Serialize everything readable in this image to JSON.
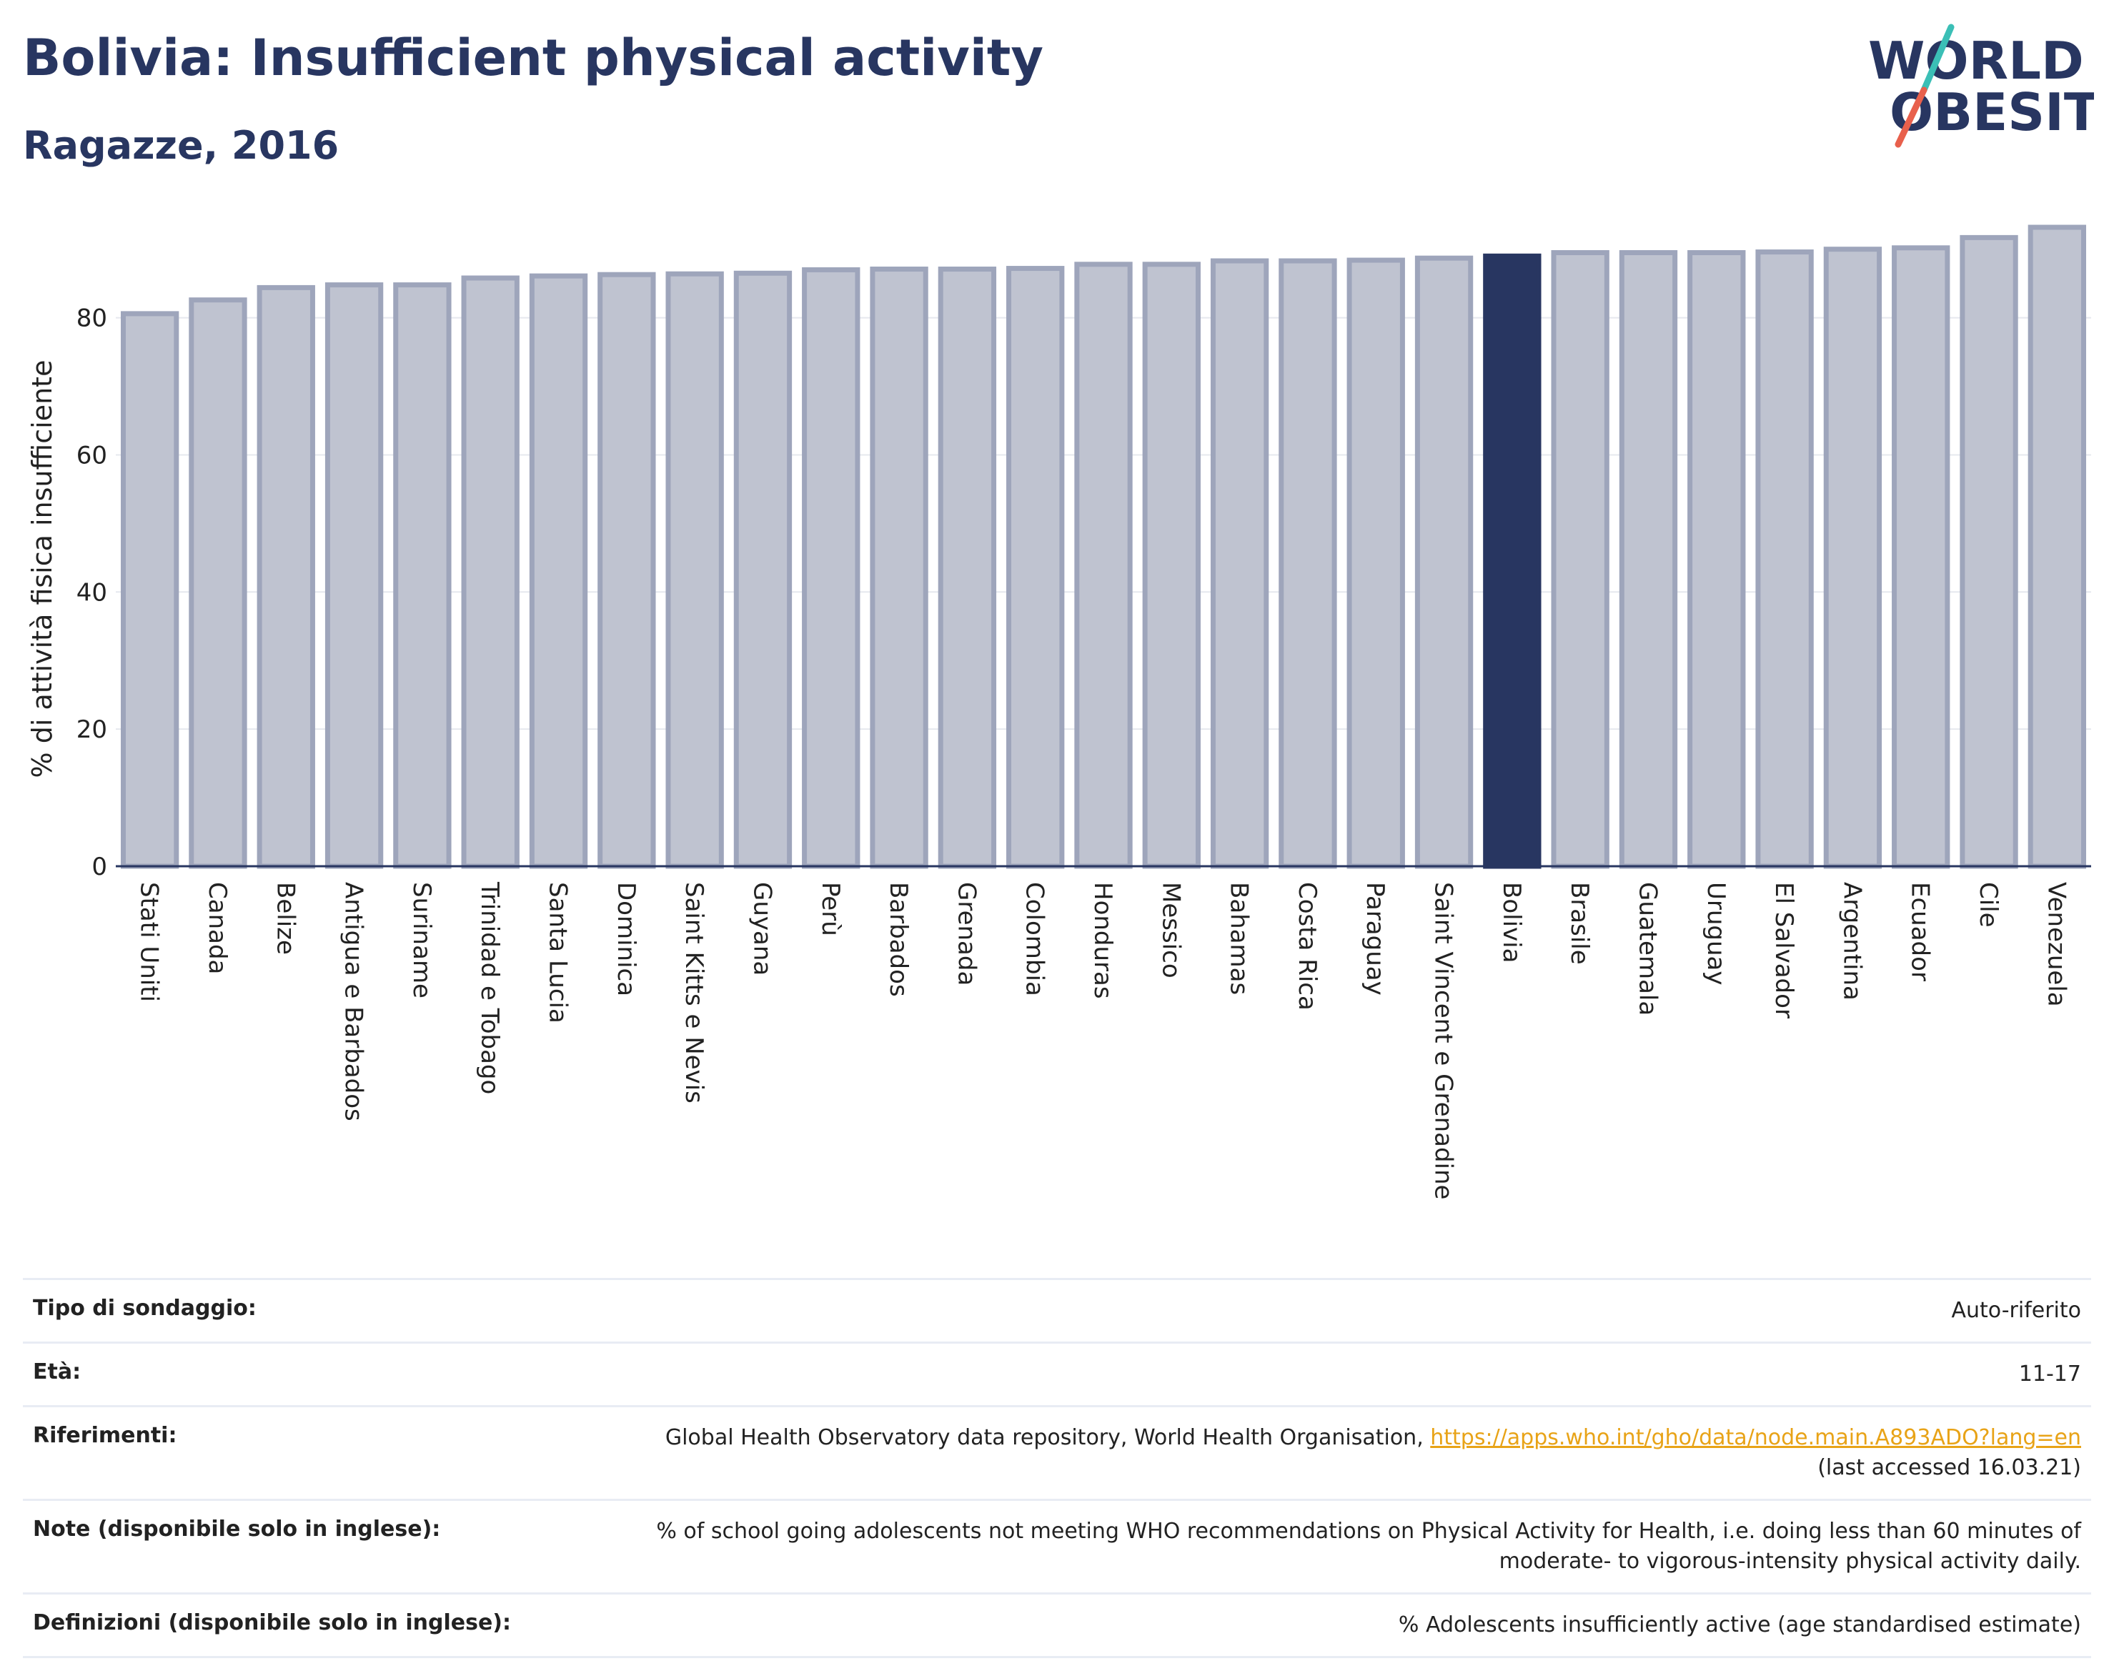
{
  "header": {
    "title": "Bolivia: Insufficient physical activity",
    "subtitle": "Ragazze, 2016"
  },
  "logo": {
    "line1": "WORLD",
    "line2": "OBESITY",
    "colors": {
      "text": "#283661",
      "slash_top": "#3bbfb6",
      "slash_bottom": "#e8604c"
    }
  },
  "chart_data": {
    "type": "bar",
    "ylabel": "% di attività fisica insufficiente",
    "xlabel": "",
    "ylim": [
      0,
      95
    ],
    "yticks": [
      0,
      20,
      40,
      60,
      80
    ],
    "grid": true,
    "highlight": "Bolivia",
    "colors": {
      "bar": "#bfc3d0",
      "bar_border": "#9ea5bb",
      "highlight": "#283661"
    },
    "categories": [
      "Stati Uniti",
      "Canada",
      "Belize",
      "Antigua e Barbados",
      "Suriname",
      "Trinidad e Tobago",
      "Santa Lucia",
      "Dominica",
      "Saint Kitts e Nevis",
      "Guyana",
      "Perù",
      "Barbados",
      "Grenada",
      "Colombia",
      "Honduras",
      "Messico",
      "Bahamas",
      "Costa Rica",
      "Paraguay",
      "Saint Vincent e Grenadine",
      "Bolivia",
      "Brasile",
      "Guatemala",
      "Uruguay",
      "El Salvador",
      "Argentina",
      "Ecuador",
      "Cile",
      "Venezuela"
    ],
    "values": [
      80.6,
      82.6,
      84.4,
      84.8,
      84.8,
      85.8,
      86.1,
      86.3,
      86.4,
      86.5,
      87.0,
      87.1,
      87.1,
      87.2,
      87.8,
      87.8,
      88.3,
      88.3,
      88.4,
      88.7,
      89.0,
      89.5,
      89.5,
      89.5,
      89.6,
      90.0,
      90.2,
      91.7,
      93.2
    ]
  },
  "info": {
    "rows": [
      {
        "key": "Tipo di sondaggio:",
        "value": "Auto-riferito"
      },
      {
        "key": "Età:",
        "value": "11-17"
      },
      {
        "key": "Riferimenti:",
        "value": "Global Health Observatory data repository, World Health Organisation, ",
        "link": "https://apps.who.int/gho/data/node.main.A893ADO?lang=en",
        "value2": "(last accessed 16.03.21)"
      },
      {
        "key": "Note (disponibile solo in inglese):",
        "value": "% of school going adolescents not meeting WHO recommendations on Physical Activity for Health, i.e. doing less than 60 minutes of moderate- to vigorous-intensity physical activity daily."
      },
      {
        "key": "Definizioni (disponibile solo in inglese):",
        "value": "% Adolescents insufficiently active (age standardised estimate)"
      }
    ]
  }
}
